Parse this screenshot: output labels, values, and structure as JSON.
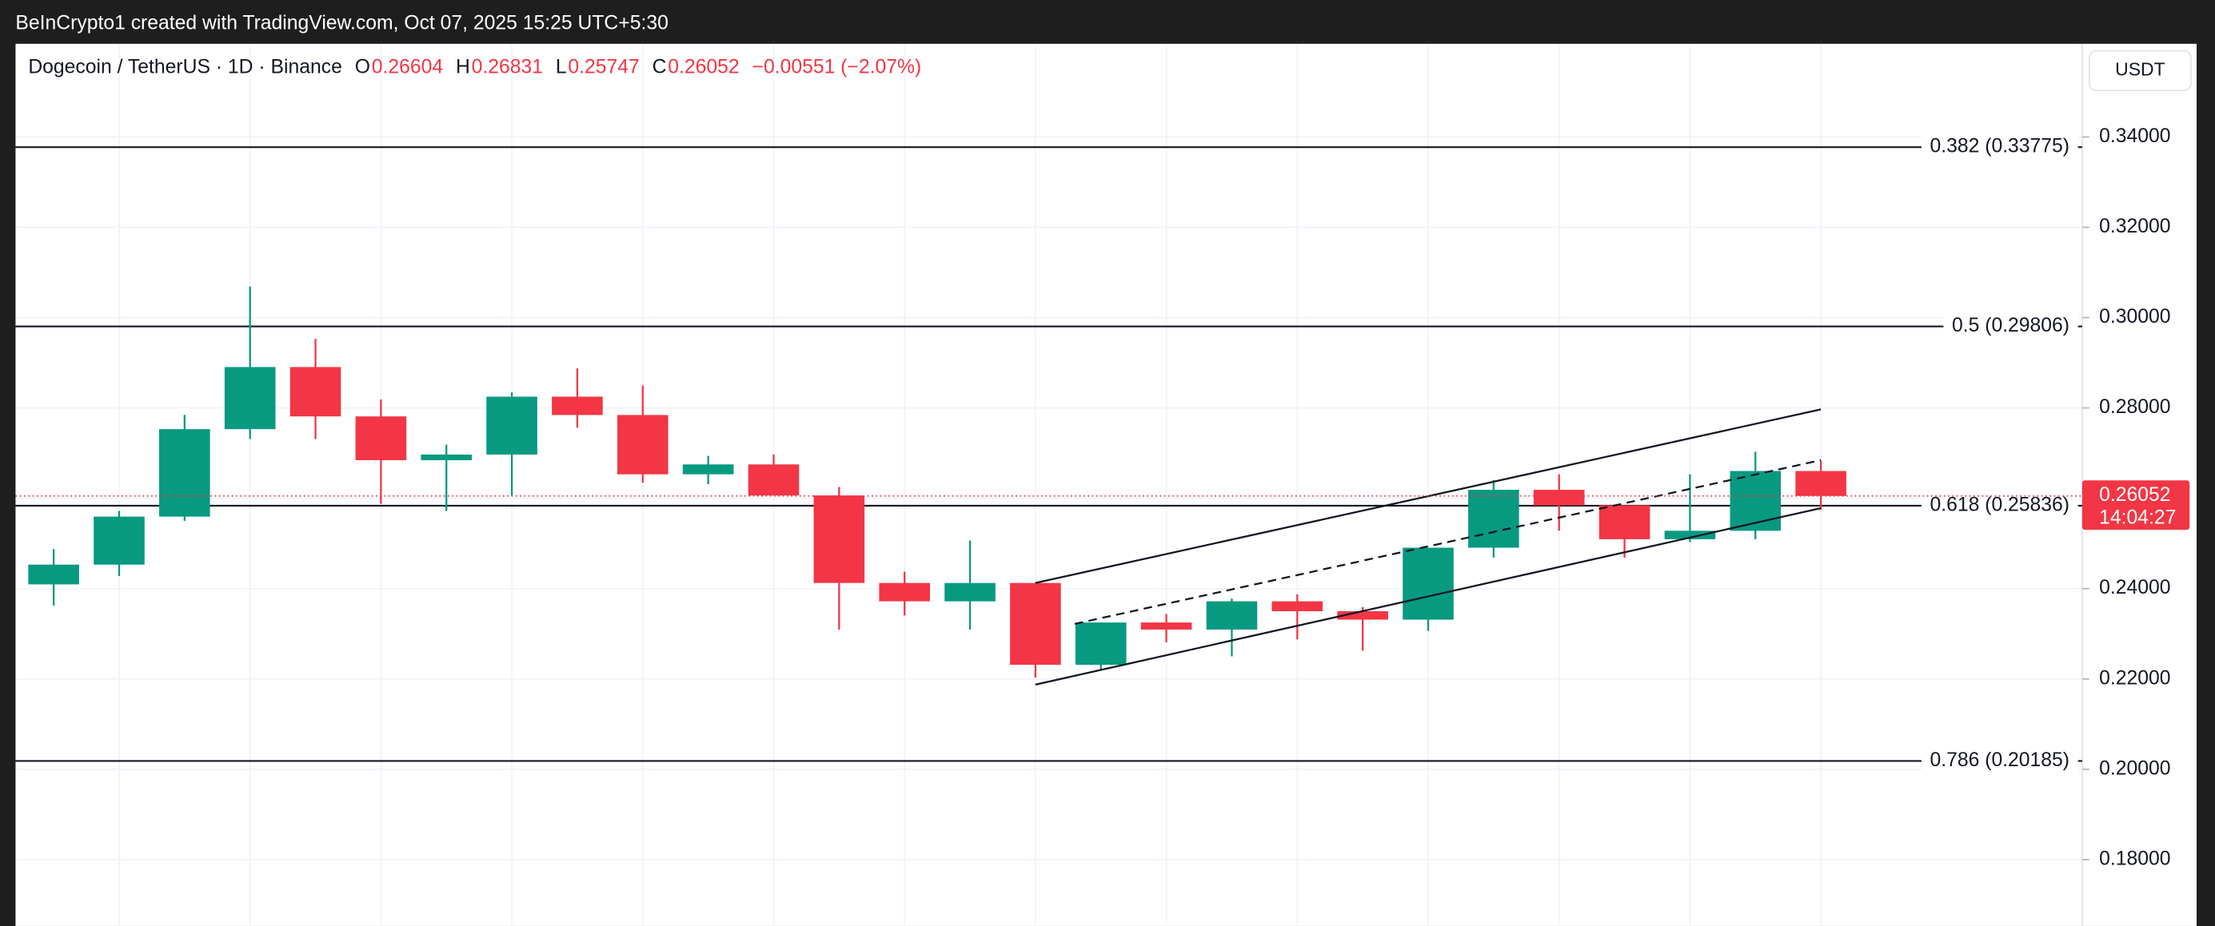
{
  "header": "BeInCrypto1 created with TradingView.com, Oct 07, 2025 15:25 UTC+5:30",
  "currency": "USDT",
  "chart_data": {
    "type": "candlestick",
    "title": "Dogecoin / TetherUS · 1D · Binance",
    "legend_keys": [
      "O",
      "H",
      "L",
      "C"
    ],
    "change_label": "−0.00551 (−2.07%)",
    "countdown": "14:04:27",
    "up_color": "#089981",
    "down_color": "#f23645",
    "ylim": [
      0.16531,
      0.36063
    ],
    "yticks": [
      {
        "value": 0.18,
        "label": "0.18000"
      },
      {
        "value": 0.2,
        "label": "0.20000"
      },
      {
        "value": 0.22,
        "label": "0.22000"
      },
      {
        "value": 0.24,
        "label": "0.24000"
      },
      {
        "value": 0.26,
        "label": "0.26000"
      },
      {
        "value": 0.28,
        "label": "0.28000"
      },
      {
        "value": 0.3,
        "label": "0.30000"
      },
      {
        "value": 0.32,
        "label": "0.32000"
      },
      {
        "value": 0.34,
        "label": "0.34000"
      }
    ],
    "grid": true,
    "levels": [
      {
        "value": 0.33775,
        "label": "0.382 (0.33775)"
      },
      {
        "value": 0.29806,
        "label": "0.5 (0.29806)"
      },
      {
        "value": 0.25836,
        "label": "0.618 (0.25836)"
      },
      {
        "value": 0.20185,
        "label": "0.786 (0.20185)"
      }
    ],
    "trendlines": [
      {
        "x": [
          15,
          27
        ],
        "y": [
          0.24125,
          0.27969
        ],
        "dashed": false
      },
      {
        "x": [
          15,
          27
        ],
        "y": [
          0.21875,
          0.25781
        ],
        "dashed": false
      },
      {
        "x": [
          15.6,
          27
        ],
        "y": [
          0.23219,
          0.26844
        ],
        "dashed": true
      }
    ],
    "candles": [
      {
        "open": 0.24094,
        "high": 0.24875,
        "low": 0.23625,
        "close": 0.24531
      },
      {
        "open": 0.24531,
        "high": 0.25719,
        "low": 0.24281,
        "close": 0.25594
      },
      {
        "open": 0.25594,
        "high": 0.27844,
        "low": 0.255,
        "close": 0.27531
      },
      {
        "open": 0.27531,
        "high": 0.30688,
        "low": 0.27313,
        "close": 0.28906
      },
      {
        "open": 0.28906,
        "high": 0.29531,
        "low": 0.27313,
        "close": 0.27813
      },
      {
        "open": 0.27813,
        "high": 0.28188,
        "low": 0.25875,
        "close": 0.26844
      },
      {
        "open": 0.26844,
        "high": 0.27188,
        "low": 0.25719,
        "close": 0.26969
      },
      {
        "open": 0.26969,
        "high": 0.28344,
        "low": 0.26063,
        "close": 0.2825
      },
      {
        "open": 0.2825,
        "high": 0.28875,
        "low": 0.27563,
        "close": 0.27844
      },
      {
        "open": 0.27844,
        "high": 0.285,
        "low": 0.26344,
        "close": 0.26531
      },
      {
        "open": 0.26531,
        "high": 0.26938,
        "low": 0.26313,
        "close": 0.2675
      },
      {
        "open": 0.2675,
        "high": 0.26969,
        "low": 0.26063,
        "close": 0.26063
      },
      {
        "open": 0.26063,
        "high": 0.2625,
        "low": 0.23094,
        "close": 0.24125
      },
      {
        "open": 0.24125,
        "high": 0.24375,
        "low": 0.23406,
        "close": 0.23719
      },
      {
        "open": 0.23719,
        "high": 0.25063,
        "low": 0.23094,
        "close": 0.24125
      },
      {
        "open": 0.24125,
        "high": 0.24125,
        "low": 0.22031,
        "close": 0.22313
      },
      {
        "open": 0.22313,
        "high": 0.2325,
        "low": 0.22188,
        "close": 0.2325
      },
      {
        "open": 0.2325,
        "high": 0.23438,
        "low": 0.22813,
        "close": 0.23094
      },
      {
        "open": 0.23094,
        "high": 0.23781,
        "low": 0.225,
        "close": 0.23719
      },
      {
        "open": 0.23719,
        "high": 0.23875,
        "low": 0.22875,
        "close": 0.235
      },
      {
        "open": 0.235,
        "high": 0.23594,
        "low": 0.22625,
        "close": 0.23313
      },
      {
        "open": 0.23313,
        "high": 0.24906,
        "low": 0.23063,
        "close": 0.24906
      },
      {
        "open": 0.24906,
        "high": 0.26406,
        "low": 0.24688,
        "close": 0.26188
      },
      {
        "open": 0.26188,
        "high": 0.26531,
        "low": 0.25281,
        "close": 0.25844
      },
      {
        "open": 0.25844,
        "high": 0.25844,
        "low": 0.24688,
        "close": 0.25094
      },
      {
        "open": 0.25094,
        "high": 0.26531,
        "low": 0.25031,
        "close": 0.25281
      },
      {
        "open": 0.25281,
        "high": 0.27031,
        "low": 0.25094,
        "close": 0.26604
      },
      {
        "open": 0.26604,
        "high": 0.26831,
        "low": 0.25747,
        "close": 0.26052
      }
    ]
  }
}
